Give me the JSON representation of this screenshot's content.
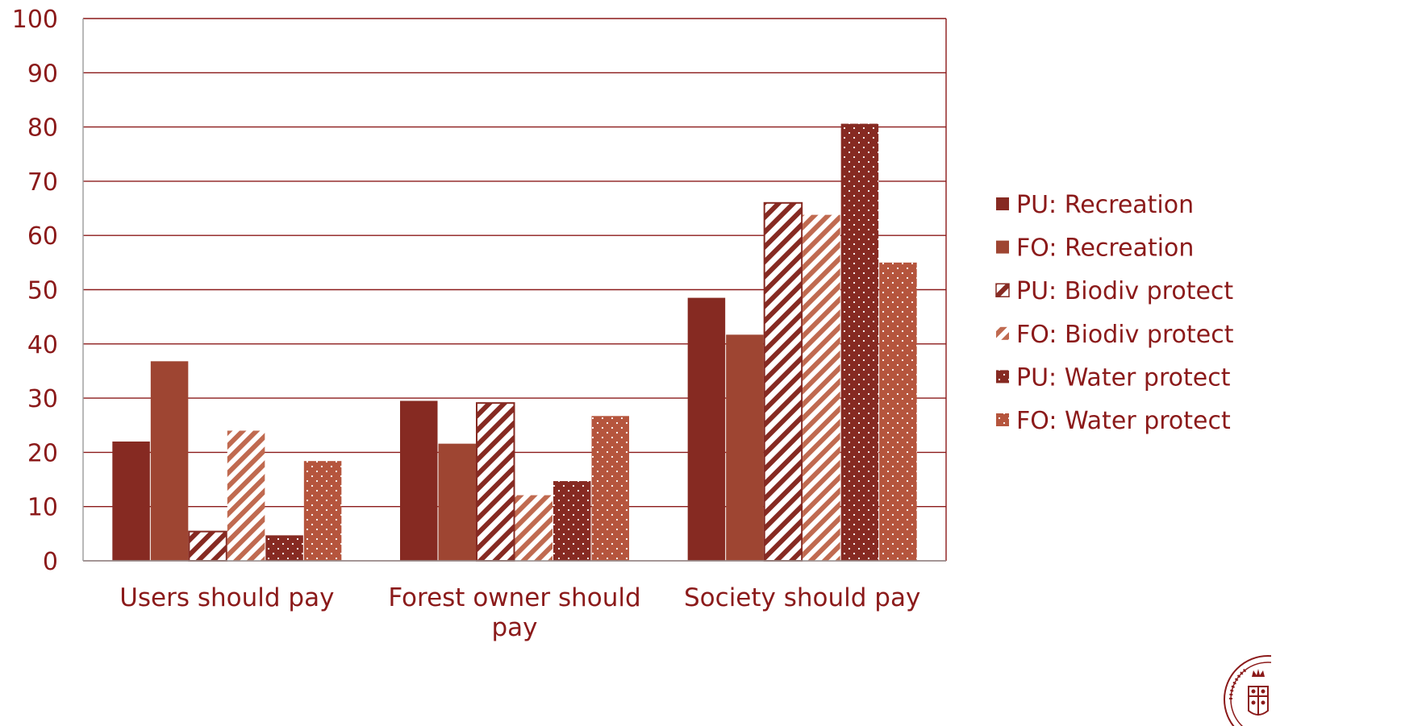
{
  "chart_data": {
    "type": "bar",
    "categories": [
      "Users should pay",
      "Forest owner should pay",
      "Society should pay"
    ],
    "category_lines": [
      [
        "Users should pay"
      ],
      [
        "Forest owner should",
        "pay"
      ],
      [
        "Society should pay"
      ]
    ],
    "series": [
      {
        "name": "PU: Recreation",
        "values": [
          22,
          29.5,
          48.5
        ],
        "color": "#862a22",
        "pattern": "solid"
      },
      {
        "name": "FO: Recreation",
        "values": [
          36.8,
          21.6,
          41.7
        ],
        "color": "#9e4532",
        "pattern": "solid"
      },
      {
        "name": "PU: Biodiv protect",
        "values": [
          5.4,
          29.1,
          66
        ],
        "color": "#862a22",
        "pattern": "wide-diagonal"
      },
      {
        "name": "FO: Biodiv protect",
        "values": [
          24,
          12.1,
          63.8
        ],
        "color": "#c06a50",
        "pattern": "light-diagonal"
      },
      {
        "name": "PU: Water protect",
        "values": [
          4.7,
          14.7,
          80.6
        ],
        "color": "#862a22",
        "pattern": "dots"
      },
      {
        "name": "FO: Water protect",
        "values": [
          18.4,
          26.7,
          55
        ],
        "color": "#b5553d",
        "pattern": "dots"
      }
    ],
    "ylim": [
      0,
      100
    ],
    "yticks": [
      "0",
      "10",
      "20",
      "30",
      "40",
      "50",
      "60",
      "70",
      "80",
      "90",
      "100"
    ],
    "grid": true,
    "legend_position": "right",
    "title": "",
    "xlabel": "",
    "ylabel": ""
  },
  "colors": {
    "axis": "#8b1a1a",
    "text": "#8b1a1a"
  },
  "logo_icon": "university-seal-icon"
}
